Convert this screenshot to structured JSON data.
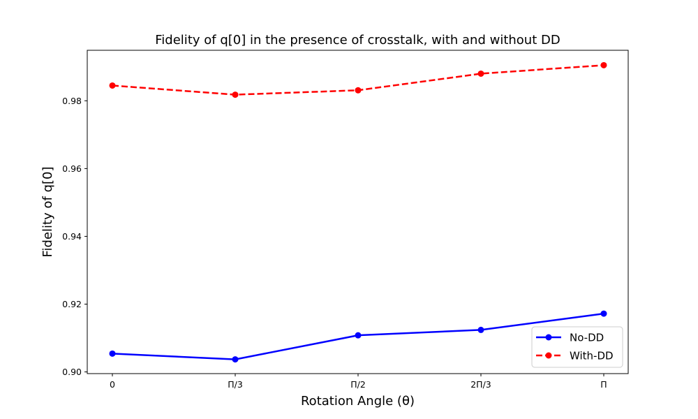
{
  "chart_data": {
    "type": "line",
    "title": "Fidelity of q[0] in the presence of crosstalk, with and without DD",
    "xlabel": "Rotation Angle (θ)",
    "ylabel": "Fidelity of q[0]",
    "categories": [
      "0",
      "Π/3",
      "Π/2",
      "2Π/3",
      "Π"
    ],
    "ylim": [
      0.8995,
      0.9949
    ],
    "yticks": [
      0.9,
      0.92,
      0.94,
      0.96,
      0.98
    ],
    "grid": false,
    "legend_position": "lower-right",
    "series": [
      {
        "name": "No-DD",
        "color": "#0000ff",
        "line_style": "solid",
        "marker": "circle",
        "values": [
          0.9054,
          0.9037,
          0.9108,
          0.9124,
          0.9172
        ]
      },
      {
        "name": "With-DD",
        "color": "#ff0000",
        "line_style": "dashed",
        "marker": "circle",
        "values": [
          0.9845,
          0.9818,
          0.9831,
          0.988,
          0.9905
        ]
      }
    ]
  }
}
